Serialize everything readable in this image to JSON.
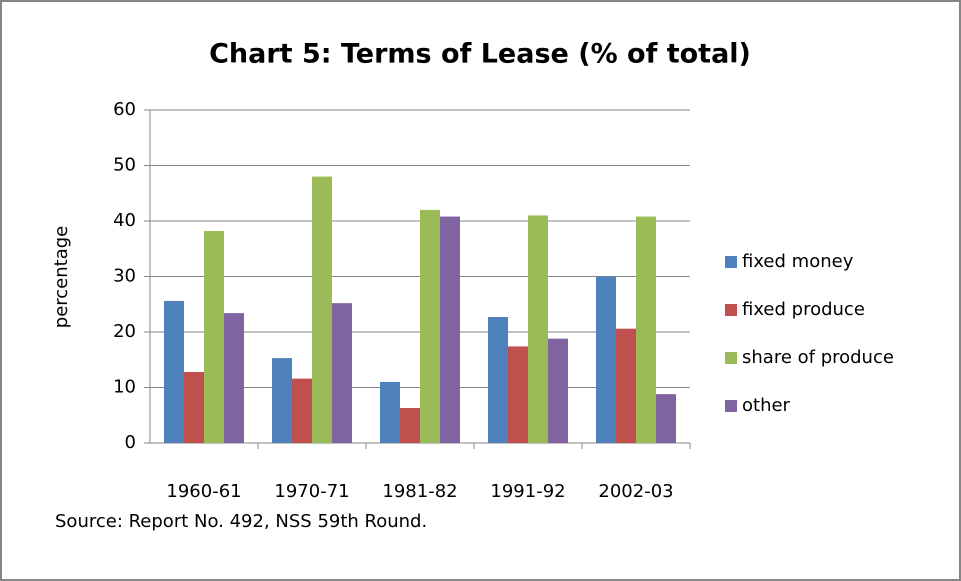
{
  "chart_data": {
    "type": "bar",
    "title": "Chart 5: Terms of Lease (% of total)",
    "y_axis_label": "percentage",
    "source": "Source: Report No. 492, NSS 59th Round.",
    "categories": [
      "1960-61",
      "1970-71",
      "1981-82",
      "1991-92",
      "2002-03"
    ],
    "series": [
      {
        "name": "fixed money",
        "color": "#4f81bd",
        "values": [
          25.6,
          15.3,
          11,
          22.7,
          30
        ]
      },
      {
        "name": "fixed produce",
        "color": "#c0504d",
        "values": [
          12.8,
          11.6,
          6.3,
          17.4,
          20.6
        ]
      },
      {
        "name": "share of produce",
        "color": "#9bbb59",
        "values": [
          38.2,
          48,
          42,
          41,
          40.8
        ]
      },
      {
        "name": "other",
        "color": "#8064a2",
        "values": [
          23.4,
          25.2,
          40.8,
          18.8,
          8.8
        ]
      }
    ],
    "ylim": [
      0,
      60
    ],
    "yticks": [
      0,
      10,
      20,
      30,
      40,
      50,
      60
    ],
    "grid": true,
    "legend": "right"
  }
}
